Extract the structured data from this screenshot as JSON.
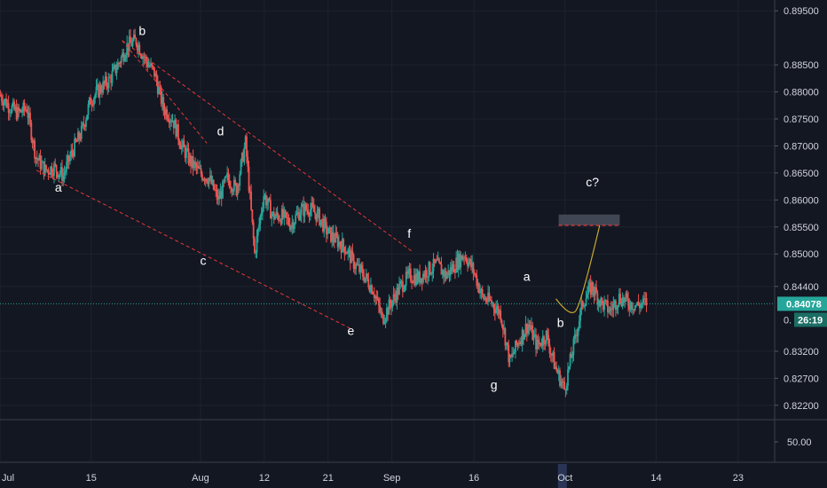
{
  "chart_data": {
    "type": "candlestick",
    "symbol_price_axis": {
      "ylim": [
        0.8195,
        0.897
      ],
      "ticks": [
        "0.89500",
        "0.88500",
        "0.88000",
        "0.87500",
        "0.87000",
        "0.86500",
        "0.86000",
        "0.85500",
        "0.85000",
        "0.84400",
        "0.83200",
        "0.82700",
        "0.82200"
      ],
      "tick_values": [
        0.895,
        0.885,
        0.88,
        0.875,
        0.87,
        0.865,
        0.86,
        0.855,
        0.85,
        0.844,
        0.832,
        0.827,
        0.822
      ]
    },
    "current_price": {
      "value": 0.84078,
      "label": "0.84078",
      "countdown": "26:19",
      "hidden_label_prefix": "0."
    },
    "indicator_pane": {
      "tick": "50.00",
      "tick_value": 50
    },
    "x_axis": {
      "labels": [
        "Jul",
        "15",
        "Aug",
        "12",
        "21",
        "Sep",
        "16",
        "Oct",
        "14",
        "23"
      ],
      "indices": [
        0,
        10,
        22,
        29,
        36,
        43,
        52,
        62,
        72,
        81
      ],
      "range": [
        0,
        85
      ]
    },
    "price_path": [
      [
        0,
        0.8795
      ],
      [
        1,
        0.8775
      ],
      [
        2,
        0.876
      ],
      [
        3,
        0.877
      ],
      [
        4,
        0.868
      ],
      [
        5,
        0.8655
      ],
      [
        6,
        0.866
      ],
      [
        7,
        0.8645
      ],
      [
        8,
        0.869
      ],
      [
        9,
        0.8725
      ],
      [
        10,
        0.8785
      ],
      [
        11,
        0.8805
      ],
      [
        12,
        0.882
      ],
      [
        13,
        0.885
      ],
      [
        14,
        0.8885
      ],
      [
        15,
        0.8895
      ],
      [
        16,
        0.886
      ],
      [
        17,
        0.8835
      ],
      [
        18,
        0.877
      ],
      [
        19,
        0.875
      ],
      [
        20,
        0.87
      ],
      [
        21,
        0.867
      ],
      [
        22,
        0.865
      ],
      [
        23,
        0.864
      ],
      [
        24,
        0.86
      ],
      [
        25,
        0.864
      ],
      [
        26,
        0.862
      ],
      [
        27,
        0.8705
      ],
      [
        28,
        0.85
      ],
      [
        29,
        0.861
      ],
      [
        30,
        0.857
      ],
      [
        31,
        0.857
      ],
      [
        32,
        0.8555
      ],
      [
        33,
        0.858
      ],
      [
        34,
        0.8585
      ],
      [
        35,
        0.857
      ],
      [
        36,
        0.854
      ],
      [
        37,
        0.8525
      ],
      [
        38,
        0.851
      ],
      [
        39,
        0.848
      ],
      [
        40,
        0.846
      ],
      [
        41,
        0.8435
      ],
      [
        42,
        0.838
      ],
      [
        43,
        0.841
      ],
      [
        44,
        0.844
      ],
      [
        45,
        0.846
      ],
      [
        46,
        0.8455
      ],
      [
        47,
        0.847
      ],
      [
        48,
        0.848
      ],
      [
        49,
        0.846
      ],
      [
        50,
        0.848
      ],
      [
        51,
        0.85
      ],
      [
        52,
        0.847
      ],
      [
        53,
        0.842
      ],
      [
        54,
        0.841
      ],
      [
        55,
        0.839
      ],
      [
        56,
        0.83
      ],
      [
        57,
        0.834
      ],
      [
        58,
        0.837
      ],
      [
        59,
        0.833
      ],
      [
        60,
        0.835
      ],
      [
        61,
        0.829
      ],
      [
        62,
        0.825
      ],
      [
        63,
        0.833
      ],
      [
        64,
        0.841
      ],
      [
        65,
        0.844
      ],
      [
        66,
        0.841
      ],
      [
        67,
        0.8395
      ],
      [
        68,
        0.842
      ],
      [
        69,
        0.841
      ],
      [
        70,
        0.8405
      ],
      [
        71,
        0.841
      ]
    ],
    "annotations": {
      "labels": [
        {
          "text": "b",
          "x": 15.6,
          "y": 0.8905
        },
        {
          "text": "a",
          "x": 6.4,
          "y": 0.8615
        },
        {
          "text": "d",
          "x": 24.2,
          "y": 0.872
        },
        {
          "text": "c",
          "x": 22.3,
          "y": 0.848
        },
        {
          "text": "f",
          "x": 44.9,
          "y": 0.853
        },
        {
          "text": "e",
          "x": 38.5,
          "y": 0.835
        },
        {
          "text": "a",
          "x": 57.8,
          "y": 0.845
        },
        {
          "text": "b",
          "x": 61.5,
          "y": 0.8365
        },
        {
          "text": "g",
          "x": 54.2,
          "y": 0.825
        },
        {
          "text": "c?",
          "x": 65.0,
          "y": 0.8625
        }
      ],
      "channel_upper": {
        "from": [
          13.4,
          0.8895
        ],
        "to": [
          45.2,
          0.8505
        ]
      },
      "channel_lower": {
        "from": [
          4.0,
          0.8655
        ],
        "to": [
          38.7,
          0.836
        ]
      },
      "connector_bd": {
        "from": [
          13.4,
          0.8895
        ],
        "to": [
          22.7,
          0.8705
        ]
      },
      "target_zone": {
        "y_top": 0.8573,
        "y_bottom": 0.8553,
        "x_start": 61.3,
        "x_end": 68.0
      },
      "target_line_y": 0.8553,
      "projection_curve": {
        "from": [
          61.0,
          0.8417
        ],
        "via": [
          62.6,
          0.8395
        ],
        "to": [
          65.8,
          0.8553
        ]
      }
    },
    "grid": true,
    "colors": {
      "background": "#131722",
      "up": "#26a69a",
      "down": "#ef5350",
      "grid": "#1e2230",
      "channel": "#e53935",
      "current_price": "#26a69a",
      "zone": "#4a4f5d",
      "curve": "#c8a82f",
      "axis_text": "#d1d4dc"
    }
  }
}
